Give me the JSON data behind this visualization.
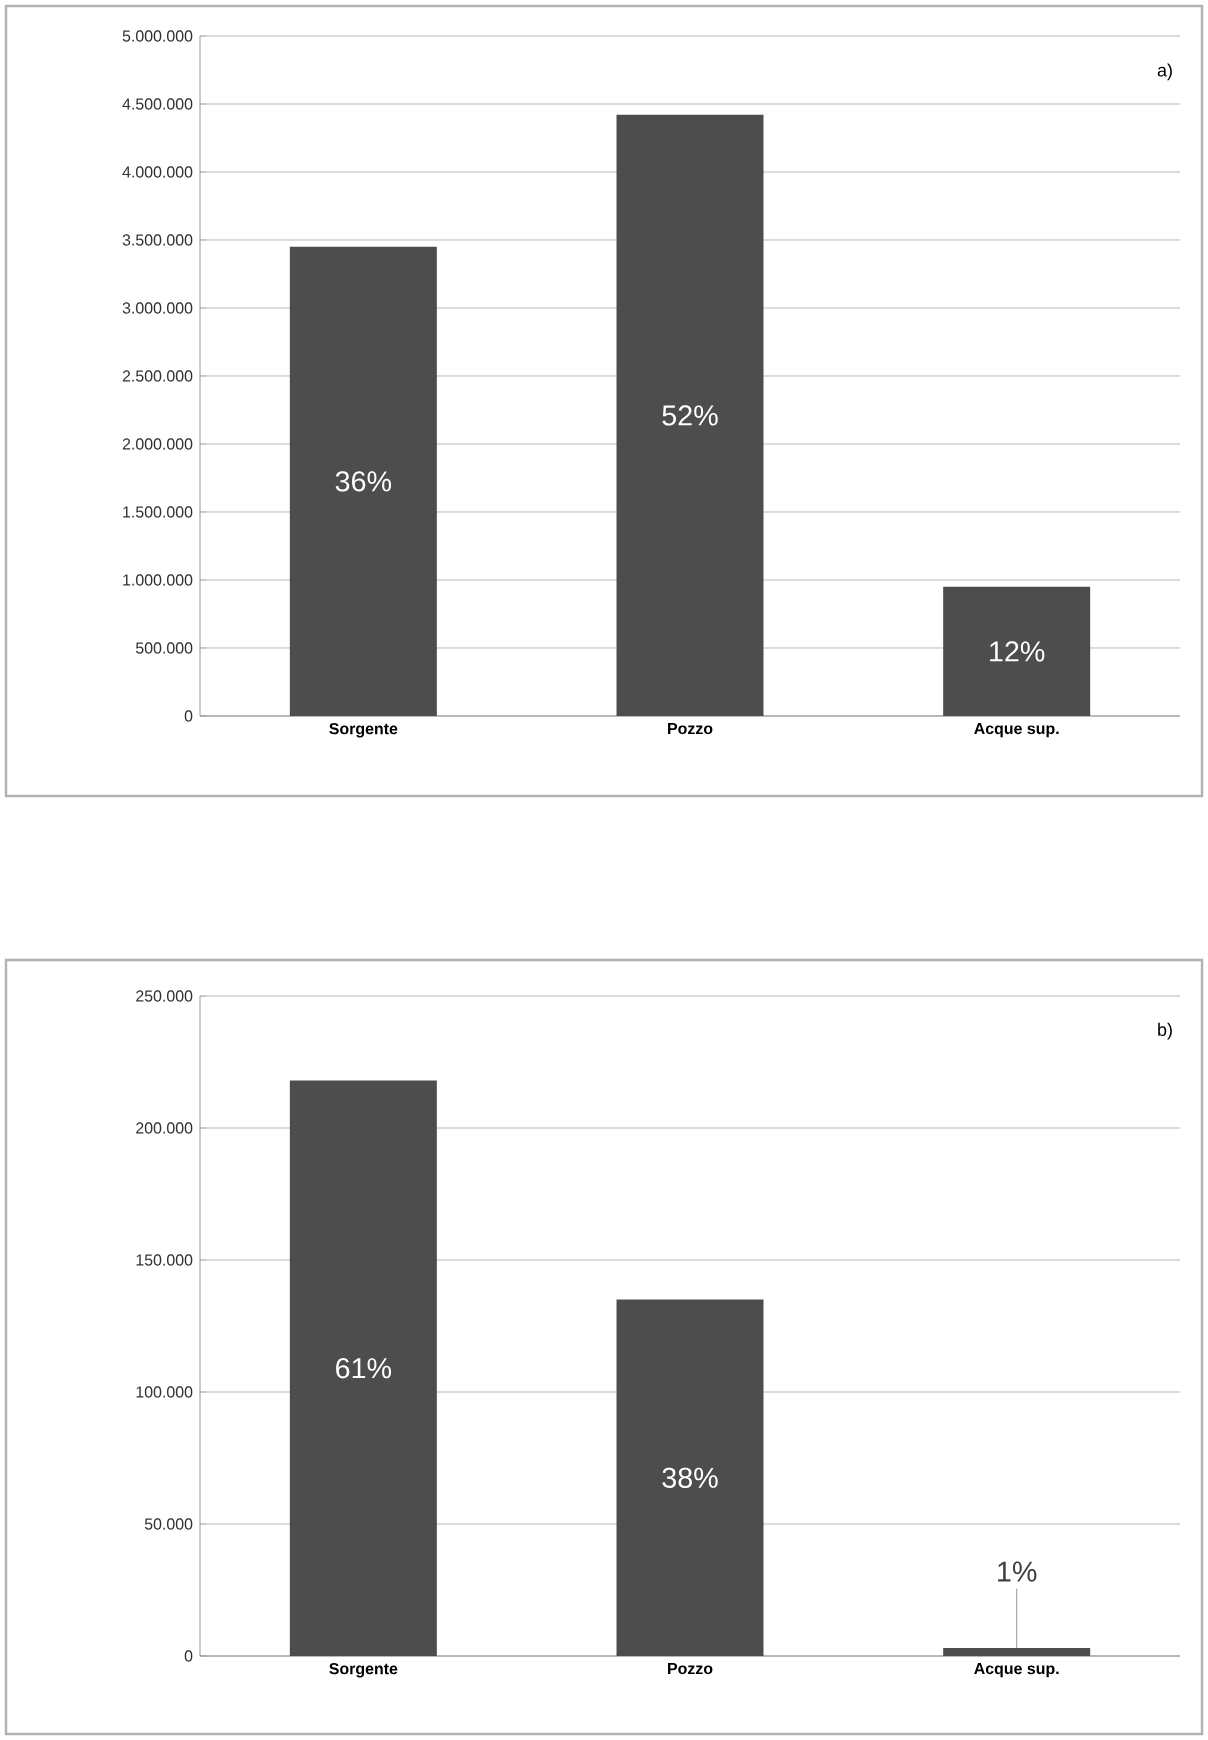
{
  "chart_data": [
    {
      "type": "bar",
      "categories": [
        "Sorgente",
        "Pozzo",
        "Acque sup."
      ],
      "values": [
        3450000,
        4420000,
        950000
      ],
      "color": "#4d4d4d",
      "ylim": [
        0,
        5000000
      ],
      "yticks": [
        {
          "value": 0,
          "label": "0"
        },
        {
          "value": 500000,
          "label": "500.000"
        },
        {
          "value": 1000000,
          "label": "1.000.000"
        },
        {
          "value": 1500000,
          "label": "1.500.000"
        },
        {
          "value": 2000000,
          "label": "2.000.000"
        },
        {
          "value": 2500000,
          "label": "2.500.000"
        },
        {
          "value": 3000000,
          "label": "3.000.000"
        },
        {
          "value": 3500000,
          "label": "3.500.000"
        },
        {
          "value": 4000000,
          "label": "4.000.000"
        },
        {
          "value": 4500000,
          "label": "4.500.000"
        },
        {
          "value": 5000000,
          "label": "5.000.000"
        }
      ],
      "grid": "y",
      "annotations": [
        "a)",
        "36%",
        "52%",
        "12%"
      ]
    },
    {
      "type": "bar",
      "categories": [
        "Sorgente",
        "Pozzo",
        "Acque sup."
      ],
      "values": [
        218000,
        135000,
        3000
      ],
      "color": "#4d4d4d",
      "ylim": [
        0,
        250000
      ],
      "yticks": [
        {
          "value": 0,
          "label": "0"
        },
        {
          "value": 50000,
          "label": "50.000"
        },
        {
          "value": 100000,
          "label": "100.000"
        },
        {
          "value": 150000,
          "label": "150.000"
        },
        {
          "value": 200000,
          "label": "200.000"
        },
        {
          "value": 250000,
          "label": "250.000"
        }
      ],
      "grid": "y",
      "annotations": [
        "b)",
        "61%",
        "38%",
        {
          "text": "1%",
          "x": "Acque sup.",
          "y": 3000
        }
      ]
    }
  ]
}
